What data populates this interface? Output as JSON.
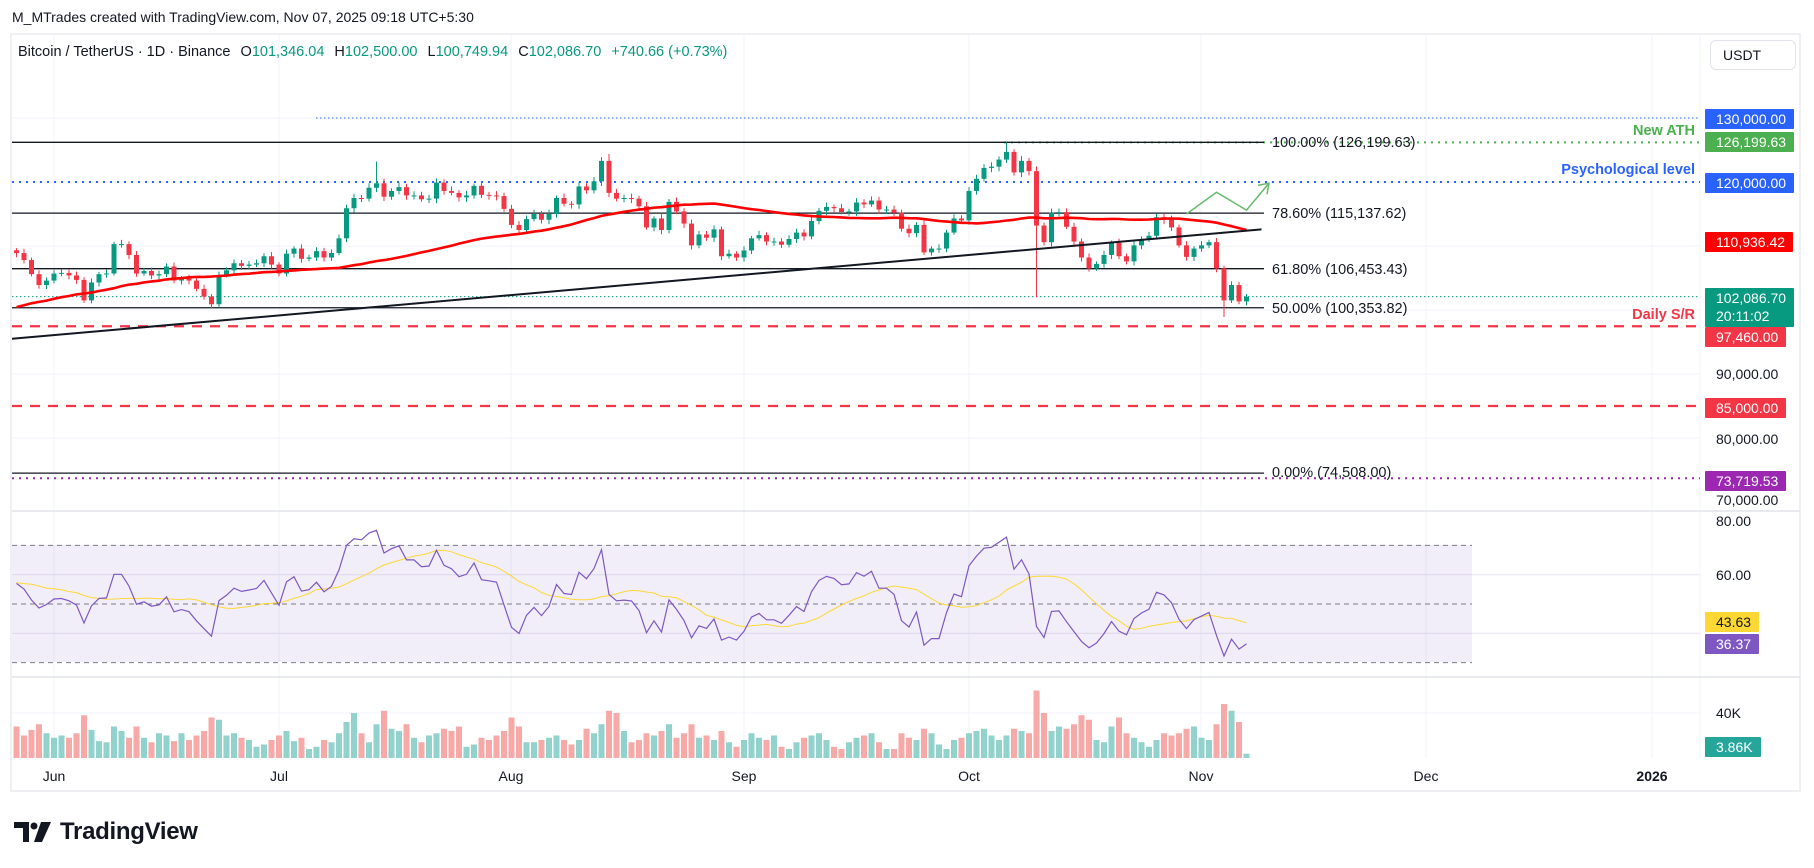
{
  "header": {
    "attribution": "M_MTrades created with TradingView.com, Nov 07, 2025 09:18 UTC+5:30"
  },
  "legend": {
    "symbol": "Bitcoin / TetherUS · 1D · Binance",
    "open_label": "O",
    "open": "101,346.04",
    "high_label": "H",
    "high": "102,500.00",
    "low_label": "L",
    "low": "100,749.94",
    "close_label": "C",
    "close": "102,086.70",
    "change": "+740.66 (+0.73%)"
  },
  "currency_button": "USDT",
  "price_axis": {
    "ticks": [
      "90,000.00",
      "80,000.00",
      "70,000.00"
    ],
    "badges": {
      "level_130k": {
        "text": "130,000.00",
        "color": "#2962ff"
      },
      "ath": {
        "text": "126,199.63",
        "color": "#4caf50"
      },
      "level_120k": {
        "text": "120,000.00",
        "color": "#2962ff"
      },
      "ma": {
        "text": "110,936.42",
        "color": "#ff0000"
      },
      "last_price": {
        "text": "102,086.70",
        "countdown": "20:11:02",
        "color": "#089981"
      },
      "daily_sr": {
        "text": "97,460.00",
        "color": "#f23645"
      },
      "level_85k": {
        "text": "85,000.00",
        "color": "#f23645"
      },
      "low_level": {
        "text": "73,719.53",
        "color": "#9c27b0"
      }
    }
  },
  "fib_levels": [
    {
      "label": "100.00% (126,199.63)",
      "price": 126199.63
    },
    {
      "label": "78.60% (115,137.62)",
      "price": 115137.62
    },
    {
      "label": "61.80% (106,453.43)",
      "price": 106453.43
    },
    {
      "label": "50.00% (100,353.82)",
      "price": 100353.82
    },
    {
      "label": "0.00% (74,508.00)",
      "price": 74508.0
    }
  ],
  "annotations": {
    "new_ath": {
      "text": "New ATH",
      "color": "#4caf50"
    },
    "psych": {
      "text": "Psychological level",
      "color": "#2962ff"
    },
    "daily_sr": {
      "text": "Daily S/R",
      "color": "#f23645"
    }
  },
  "rsi_axis": {
    "ticks": [
      "80.00",
      "60.00"
    ],
    "rsi_value": "36.37",
    "rsi_ma_value": "43.63",
    "rsi_color": "#7e57c2",
    "rsi_ma_color": "#fdd835"
  },
  "volume_axis": {
    "ticks": [
      "40K"
    ],
    "last_volume": "3.86K",
    "color": "#26a69a"
  },
  "time_axis": [
    "Jun",
    "Jul",
    "Aug",
    "Sep",
    "Oct",
    "Nov",
    "Dec",
    "2026"
  ],
  "logo": "TradingView",
  "chart_data": {
    "type": "candlestick",
    "start_date": "2025-05-27",
    "interval": "1D",
    "up_color": "#089981",
    "down_color": "#f23645",
    "ylim": [
      67000,
      138000
    ],
    "closes": [
      108900,
      107800,
      105600,
      103900,
      104600,
      105700,
      105800,
      105400,
      104700,
      101500,
      104300,
      105600,
      105700,
      110300,
      110300,
      108600,
      105700,
      106100,
      105400,
      105600,
      106800,
      104600,
      104900,
      104600,
      103300,
      102100,
      100900,
      105400,
      106200,
      107300,
      106900,
      107100,
      107300,
      108400,
      107100,
      105700,
      108800,
      109600,
      108000,
      108200,
      109200,
      108200,
      108900,
      111200,
      115900,
      117500,
      117400,
      119100,
      119800,
      117700,
      118600,
      119200,
      117900,
      117900,
      117300,
      117400,
      119900,
      118600,
      118300,
      117600,
      117900,
      119400,
      118000,
      117900,
      117800,
      115800,
      113300,
      112500,
      114200,
      115000,
      114100,
      115000,
      117500,
      116600,
      116500,
      119300,
      118700,
      120100,
      123300,
      118300,
      117400,
      117500,
      117400,
      116200,
      112900,
      114300,
      112500,
      116900,
      115400,
      113500,
      110100,
      111800,
      111300,
      112600,
      108400,
      108800,
      108200,
      109300,
      111200,
      111700,
      110700,
      110700,
      110200,
      111100,
      112100,
      111500,
      113900,
      115500,
      116100,
      115900,
      115300,
      115400,
      116800,
      116500,
      117100,
      115700,
      115700,
      115200,
      112700,
      112000,
      113300,
      109000,
      109600,
      109600,
      112100,
      114300,
      114000,
      118600,
      120500,
      122200,
      122400,
      123500,
      124700,
      121500,
      123300,
      121700,
      113200,
      110600,
      115200,
      115300,
      113000,
      110700,
      108200,
      106500,
      107200,
      108600,
      110500,
      108400,
      107600,
      110100,
      111000,
      111600,
      114500,
      114100,
      112900,
      110100,
      108300,
      109600,
      110100,
      110600,
      106500,
      101500,
      103900,
      101346.04,
      102086.7
    ],
    "volumes_k": [
      28,
      20,
      25,
      30,
      22,
      18,
      20,
      18,
      22,
      38,
      25,
      15,
      14,
      28,
      24,
      18,
      28,
      18,
      14,
      22,
      20,
      15,
      22,
      16,
      20,
      24,
      36,
      34,
      20,
      22,
      18,
      16,
      10,
      12,
      16,
      20,
      24,
      15,
      18,
      8,
      10,
      16,
      14,
      22,
      32,
      40,
      22,
      14,
      30,
      42,
      26,
      24,
      30,
      18,
      14,
      20,
      22,
      26,
      24,
      28,
      10,
      12,
      18,
      16,
      20,
      24,
      36,
      28,
      14,
      14,
      16,
      18,
      20,
      16,
      12,
      16,
      26,
      22,
      30,
      42,
      40,
      24,
      14,
      16,
      22,
      20,
      24,
      30,
      18,
      22,
      30,
      18,
      20,
      16,
      24,
      14,
      10,
      16,
      22,
      18,
      16,
      20,
      10,
      8,
      14,
      18,
      20,
      22,
      16,
      10,
      8,
      14,
      18,
      20,
      22,
      14,
      8,
      8,
      22,
      18,
      16,
      26,
      22,
      12,
      8,
      16,
      18,
      22,
      24,
      26,
      20,
      16,
      20,
      26,
      24,
      22,
      60,
      40,
      24,
      28,
      26,
      30,
      38,
      34,
      16,
      14,
      28,
      36,
      22,
      18,
      14,
      10,
      16,
      22,
      20,
      22,
      26,
      28,
      18,
      16,
      30,
      48,
      42,
      32,
      3.86
    ],
    "wick_extremes": {
      "2025-07-14": {
        "high": 123200
      },
      "2025-08-14": {
        "high": 124400
      },
      "2025-10-06": {
        "high": 126199.63
      },
      "2025-10-10": {
        "low": 102000
      },
      "2025-11-04": {
        "low": 98900
      },
      "2025-11-07": {
        "high": 102500.0,
        "low": 100749.94
      }
    },
    "moving_average": {
      "period": 50,
      "color": "#ff0000",
      "last": 110936.42
    },
    "trendline": [
      {
        "date": "2025-05-27",
        "price": 95500
      },
      {
        "date": "2025-11-09",
        "price": 112600
      }
    ],
    "horizontal_levels": [
      {
        "price": 130000,
        "style": "dotted",
        "color": "#2962ff"
      },
      {
        "price": 126199.63,
        "style": "dotted",
        "color": "#4caf50"
      },
      {
        "price": 120000,
        "style": "dotted",
        "color": "#2962ff"
      },
      {
        "price": 97460,
        "style": "dashed",
        "color": "#f23645"
      },
      {
        "price": 85000,
        "style": "dashed",
        "color": "#f23645"
      },
      {
        "price": 73719.53,
        "style": "dotted",
        "color": "#9c27b0"
      }
    ],
    "projection_path": [
      {
        "date": "2025-10-30",
        "price": 115000
      },
      {
        "date": "2025-11-03",
        "price": 118400
      },
      {
        "date": "2025-11-07",
        "price": 115600
      },
      {
        "date": "2025-11-10",
        "price": 119800
      }
    ],
    "rsi": {
      "period": 14,
      "ma_period": 14,
      "levels": [
        70,
        50,
        30
      ],
      "ylim": [
        20,
        82
      ]
    }
  }
}
